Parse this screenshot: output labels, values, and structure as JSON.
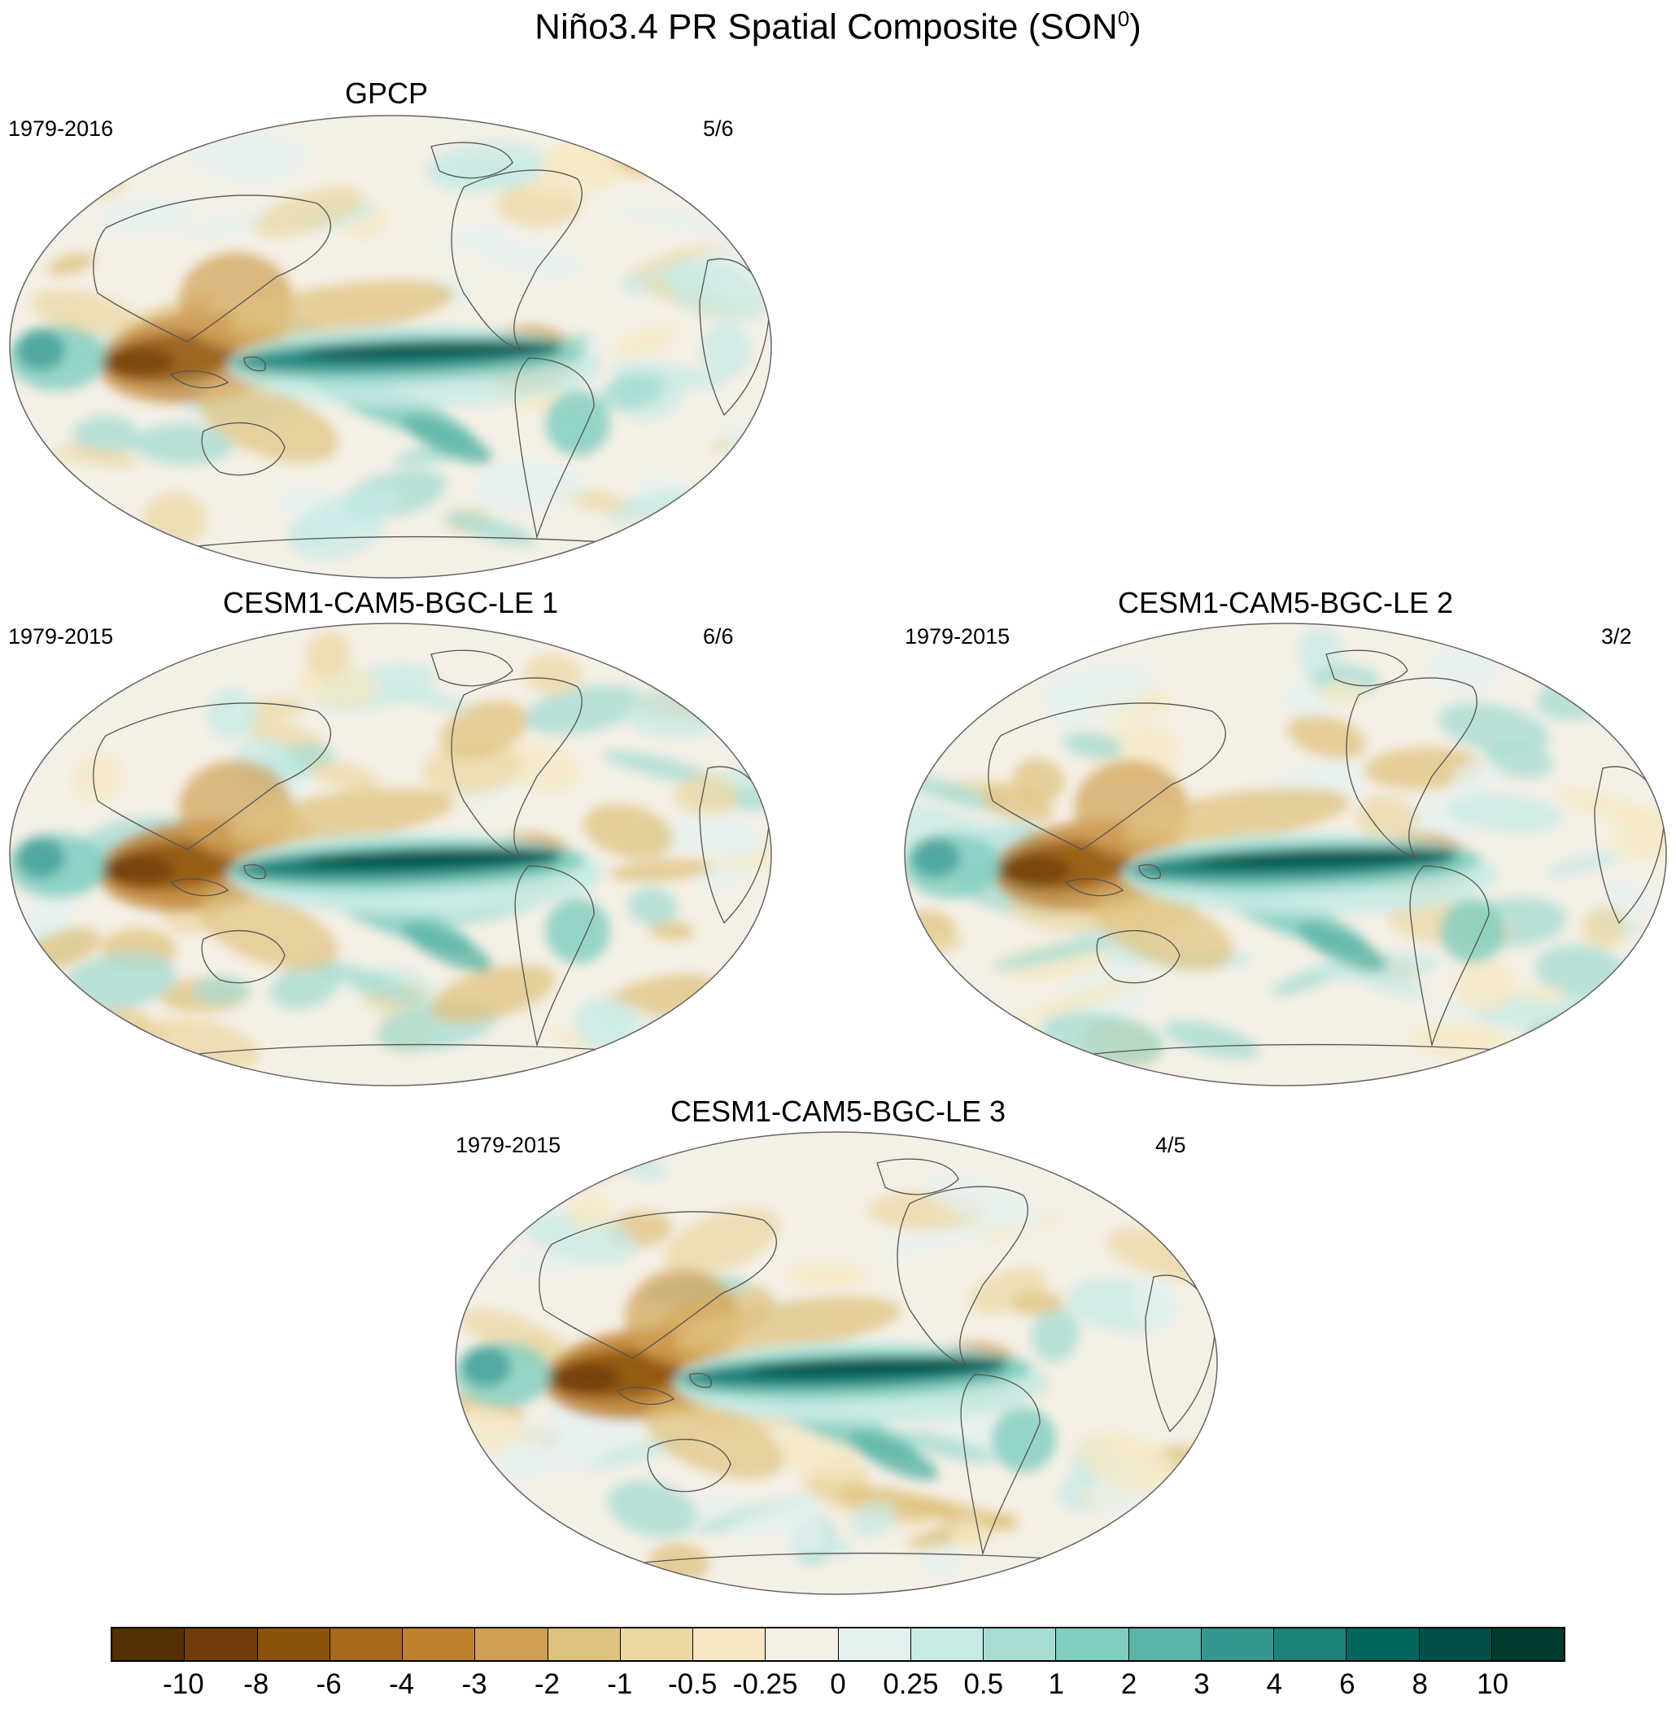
{
  "title": "Niño3.4 PR Spatial Composite (SON",
  "title_sup": "0",
  "title_close": ")",
  "panels": [
    {
      "title": "GPCP",
      "years": "1979-2016",
      "count": "5/6",
      "tropical_strength": 0.85,
      "indo_dry": 0.8,
      "variant": 0
    },
    {
      "title": "CESM1-CAM5-BGC-LE 1",
      "years": "1979-2015",
      "count": "6/6",
      "tropical_strength": 1.0,
      "indo_dry": 0.9,
      "variant": 1
    },
    {
      "title": "CESM1-CAM5-BGC-LE 2",
      "years": "1979-2015",
      "count": "3/2",
      "tropical_strength": 0.95,
      "indo_dry": 0.85,
      "variant": 2
    },
    {
      "title": "CESM1-CAM5-BGC-LE 3",
      "years": "1979-2015",
      "count": "4/5",
      "tropical_strength": 1.0,
      "indo_dry": 0.95,
      "variant": 3
    }
  ],
  "colorbar": {
    "labels": [
      "-10",
      "-8",
      "-6",
      "-4",
      "-3",
      "-2",
      "-1",
      "-0.5",
      "-0.25",
      "0",
      "0.25",
      "0.5",
      "1",
      "2",
      "3",
      "4",
      "6",
      "8",
      "10"
    ],
    "colors": [
      "#543005",
      "#6e3d08",
      "#8c510a",
      "#a8691e",
      "#bf812d",
      "#d0a052",
      "#dfc27d",
      "#ead7a3",
      "#f6e8c3",
      "#f5f0e6",
      "#e4f2ef",
      "#c7eae5",
      "#a6dcd3",
      "#80cdc1",
      "#5ab4a6",
      "#35978f",
      "#1c8379",
      "#01665e",
      "#014f47",
      "#003c30"
    ]
  },
  "colors": {
    "ocean_neutral": "#f5f0e6",
    "coast": "#555555",
    "outline": "#666666"
  }
}
